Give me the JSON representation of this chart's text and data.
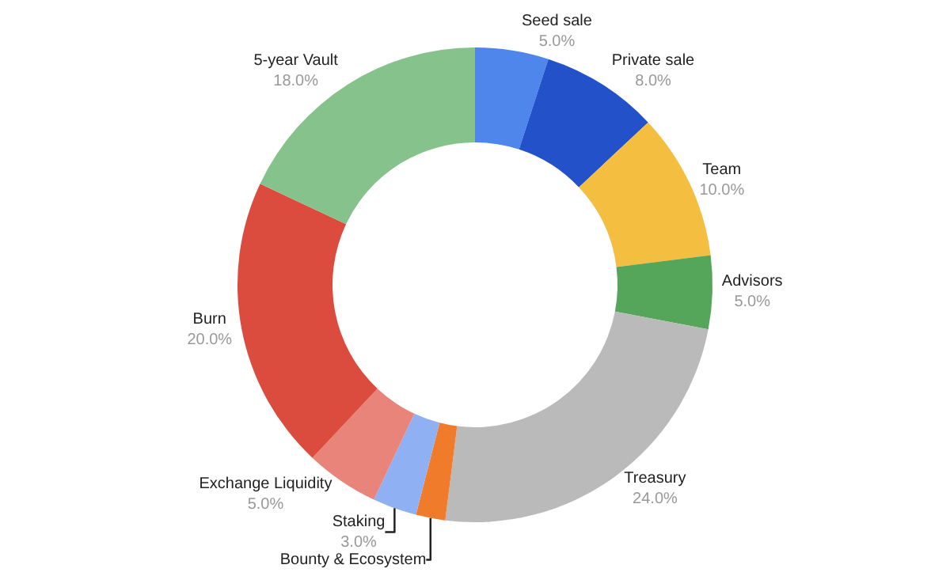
{
  "chart_data": {
    "type": "donut",
    "categories": [
      "Seed sale",
      "Private sale",
      "Team",
      "Advisors",
      "Treasury",
      "Bounty & Ecosystem",
      "Staking",
      "Exchange Liquidity",
      "Burn",
      "5-year Vault"
    ],
    "values": [
      5,
      8,
      10,
      5,
      24,
      2,
      3,
      5,
      20,
      18
    ],
    "colors": [
      "#4f86ec",
      "#2251c9",
      "#f4be41",
      "#55a65a",
      "#bababa",
      "#f07b2a",
      "#8fb0f2",
      "#e8847a",
      "#db4c3f",
      "#86c28c"
    ],
    "value_labels": [
      "5.0%",
      "8.0%",
      "10.0%",
      "5.0%",
      "24.0%",
      null,
      "3.0%",
      "5.0%",
      "20.0%",
      "18.0%"
    ],
    "legend": false
  }
}
